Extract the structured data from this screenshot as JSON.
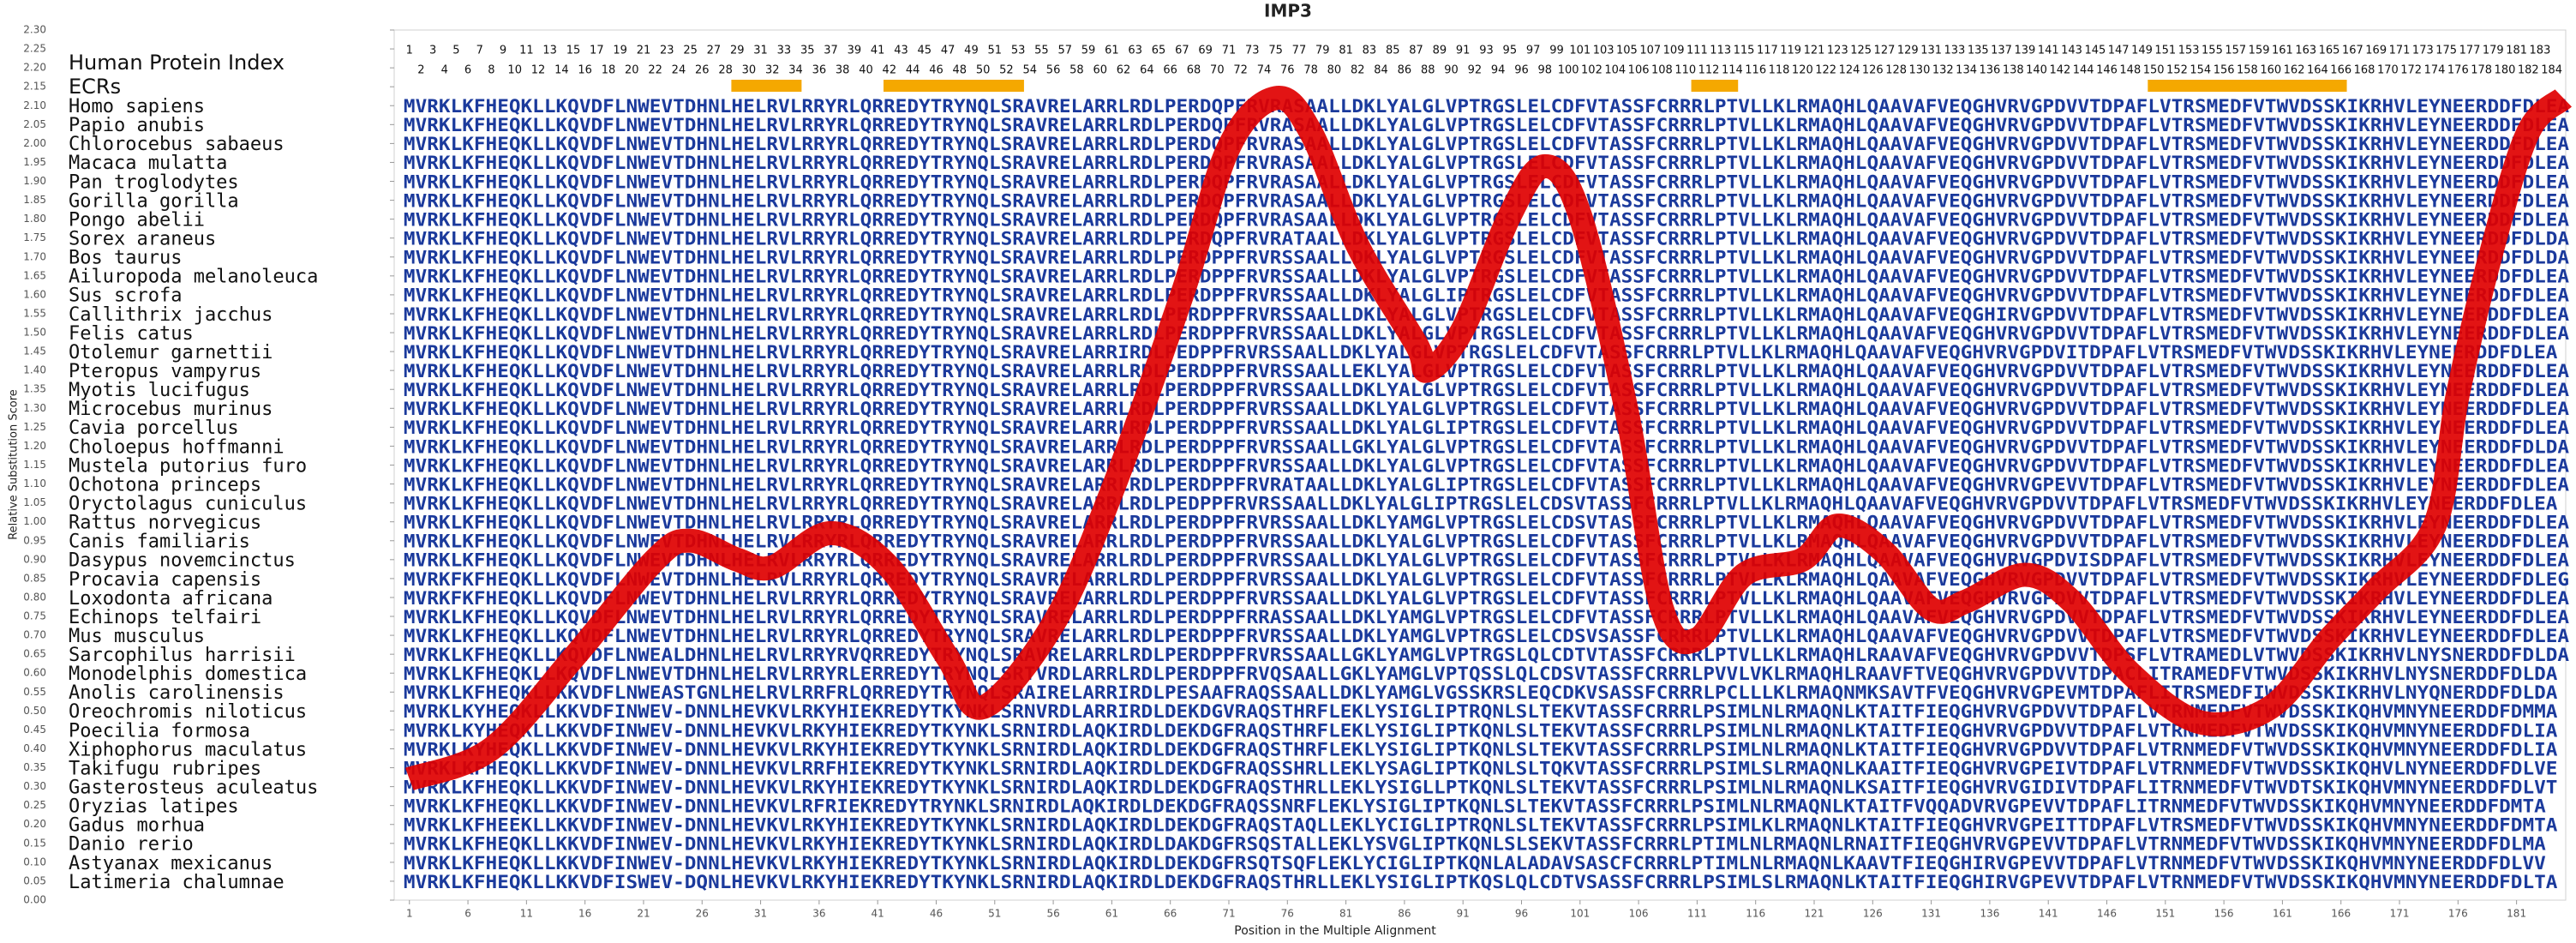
{
  "chart_data": {
    "type": "line",
    "title": "IMP3",
    "xlabel": "Position in the Multiple Alignment",
    "ylabel": "Relative Substitution Score",
    "index_label": "Human Protein Index",
    "ecr_label": "ECRs",
    "xlim": [
      -0.3,
      185.2
    ],
    "ylim": [
      0,
      2.3
    ],
    "xticks": [
      1,
      6,
      11,
      16,
      21,
      26,
      31,
      36,
      41,
      46,
      51,
      56,
      61,
      66,
      71,
      76,
      81,
      86,
      91,
      96,
      101,
      106,
      111,
      116,
      121,
      126,
      131,
      136,
      141,
      146,
      151,
      156,
      161,
      166,
      171,
      176,
      181
    ],
    "yticks": [
      {
        "value": 0,
        "label": "0.00"
      },
      0.05,
      {
        "value": 0.1,
        "label": "0.10"
      },
      0.15,
      {
        "value": 0.2,
        "label": "0.20"
      },
      0.25,
      {
        "value": 0.3,
        "label": "0.30"
      },
      0.35,
      {
        "value": 0.4,
        "label": "0.40"
      },
      0.45,
      {
        "value": 0.5,
        "label": "0.50"
      },
      0.55,
      {
        "value": 0.6,
        "label": "0.60"
      },
      0.65,
      {
        "value": 0.7,
        "label": "0.70"
      },
      0.75,
      {
        "value": 0.8,
        "label": "0.80"
      },
      0.85,
      {
        "value": 0.9,
        "label": "0.90"
      },
      0.95,
      {
        "value": 1,
        "label": "1.00"
      },
      1.05,
      {
        "value": 1.1,
        "label": "1.10"
      },
      1.15,
      {
        "value": 1.2,
        "label": "1.20"
      },
      1.25,
      {
        "value": 1.3,
        "label": "1.30"
      },
      1.35,
      {
        "value": 1.4,
        "label": "1.40"
      },
      1.45,
      {
        "value": 1.5,
        "label": "1.50"
      },
      1.55,
      {
        "value": 1.6,
        "label": "1.60"
      },
      1.65,
      {
        "value": 1.7,
        "label": "1.70"
      },
      1.75,
      {
        "value": 1.8,
        "label": "1.80"
      },
      1.85,
      {
        "value": 1.9,
        "label": "1.90"
      },
      1.95,
      {
        "value": 2,
        "label": "2.00"
      },
      2.05,
      {
        "value": 2.1,
        "label": "2.10"
      },
      2.15,
      {
        "value": 2.2,
        "label": "2.20"
      },
      2.25,
      {
        "value": 2.3,
        "label": "2.30"
      }
    ],
    "grid": false,
    "human_index": [
      1,
      2,
      3,
      4,
      5,
      6,
      7,
      8,
      9,
      10,
      11,
      12,
      13,
      14,
      15,
      16,
      17,
      18,
      19,
      20,
      21,
      22,
      23,
      24,
      25,
      26,
      27,
      28,
      29,
      30,
      31,
      32,
      33,
      34,
      35,
      36,
      37,
      38,
      39,
      40,
      41,
      42,
      43,
      44,
      45,
      46,
      47,
      48,
      49,
      50,
      51,
      52,
      53,
      54,
      55,
      56,
      57,
      58,
      59,
      60,
      61,
      62,
      63,
      64,
      65,
      66,
      67,
      68,
      69,
      70,
      71,
      72,
      73,
      74,
      75,
      76,
      77,
      78,
      79,
      80,
      81,
      82,
      83,
      84,
      85,
      86,
      87,
      88,
      89,
      90,
      91,
      92,
      93,
      94,
      95,
      96,
      97,
      98,
      99,
      100,
      101,
      102,
      103,
      104,
      105,
      106,
      107,
      108,
      109,
      110,
      111,
      112,
      113,
      114,
      115,
      116,
      117,
      118,
      119,
      120,
      121,
      122,
      123,
      124,
      125,
      126,
      127,
      128,
      129,
      130,
      131,
      132,
      133,
      134,
      135,
      136,
      137,
      138,
      139,
      140,
      141,
      142,
      143,
      144,
      145,
      146,
      147,
      148,
      149,
      150,
      151,
      152,
      153,
      154,
      155,
      156,
      157,
      158,
      159,
      160,
      161,
      162,
      163,
      164,
      165,
      166,
      167,
      168,
      169,
      170,
      171,
      172,
      173,
      174,
      175,
      176,
      177,
      178,
      179,
      180,
      181,
      182,
      183,
      184
    ],
    "ecrs": [
      [
        29,
        34
      ],
      [
        42,
        53
      ],
      [
        111,
        114
      ],
      [
        150,
        166
      ]
    ],
    "ecr_color": "#f5a800",
    "series": [
      {
        "color": "#e00000",
        "x": [
          1,
          8,
          15,
          22,
          25,
          29,
          32,
          37,
          42,
          47,
          50,
          56,
          61,
          67,
          71,
          75,
          78,
          82,
          87,
          88,
          91,
          95,
          98,
          101,
          105,
          108,
          111,
          115,
          120,
          123,
          127,
          131,
          134,
          139,
          143,
          148,
          154,
          160,
          165,
          169,
          174,
          176,
          179,
          182,
          185
        ],
        "values": [
          0.32,
          0.4,
          0.64,
          0.9,
          0.95,
          0.9,
          0.88,
          0.97,
          0.88,
          0.64,
          0.51,
          0.73,
          1.08,
          1.6,
          1.99,
          2.12,
          2.03,
          1.73,
          1.47,
          1.4,
          1.51,
          1.81,
          1.94,
          1.81,
          1.29,
          0.77,
          0.69,
          0.86,
          0.9,
          0.99,
          0.92,
          0.77,
          0.79,
          0.86,
          0.79,
          0.6,
          0.47,
          0.51,
          0.69,
          0.82,
          0.99,
          1.34,
          1.73,
          2.03,
          2.12
        ]
      }
    ],
    "alignment": [
      {
        "species": "Homo sapiens",
        "sequence": "MVRKLKFHEQKLLKQVDFLNWEVTDHNLHELRVLRRYRLQRREDYTRYNQLSRAVRELARRLRDLPERDQPFRVRASAALLDKLYALGLVPTRGSLELCDFVTASSFCRRRLPTVLLKLRMAQHLQAAVAFVEQGHVRVGPDVVTDPAFLVTRSMEDFVTWVDSSKIKRHVLEYNEERDDFDLEA"
      },
      {
        "species": "Papio anubis",
        "sequence": "MVRKLKFHEQKLLKQVDFLNWEVTDHNLHELRVLRRYRLQRREDYTRYNQLSRAVRELARRLRDLPERDQPFRVRASAALLDKLYALGLVPTRGSLELCDFVTASSFCRRRLPTVLLKLRMAQHLQAAVAFVEQGHVRVGPDVVTDPAFLVTRSMEDFVTWVDSSKIKRHVLEYNEERDDFDLEA"
      },
      {
        "species": "Chlorocebus sabaeus",
        "sequence": "MVRKLKFHEQKLLKQVDFLNWEVTDHNLHELRVLRRYRLQRREDYTRYNQLSRAVRELARRLRDLPERDQPFRVRASAALLDKLYALGLVPTRGSLELCDFVTASSFCRRRLPTVLLKLRMAQHLQAAVAFVEQGHVRVGPDVVTDPAFLVTRSMEDFVTWVDSSKIKRHVLEYNEERDDFDLEA"
      },
      {
        "species": "Macaca mulatta",
        "sequence": "MVRKLKFHEQKLLKQVDFLNWEVTDHNLHELRVLRRYRLQRREDYTRYNQLSRAVRELARRLRDLPERDQPFRVRASAALLDKLYALGLVPTRGSLELCDFVTASSFCRRRLPTVLLKLRMAQHLQAAVAFVEQGHVRVGPDVVTDPAFLVTRSMEDFVTWVDSSKIKRHVLEYNEERDDFDLEA"
      },
      {
        "species": "Pan troglodytes",
        "sequence": "MVRKLKFHEQKLLKQVDFLNWEVTDHNLHELRVLRRYRLQRREDYTRYNQLSRAVRELARRLRDLPERDQPFRVRASAALLDKLYALGLVPTRGSLELCDFVTASSFCRRRLPTVLLKLRMAQHLQAAVAFVEQGHVRVGPDVVTDPAFLVTRSMEDFVTWVDSSKIKRHVLEYNEERDDFDLEA"
      },
      {
        "species": "Gorilla gorilla",
        "sequence": "MVRKLKFHEQKLLKQVDFLNWEVTDHNLHELRVLRRYRLQRREDYTRYNQLSRAVRELARRLRDLPERDQPFRVRASAALLDKLYALGLVPTRGSLELCDFVTASSFCRRRLPTVLLKLRMAQHLQAAVAFVEQGHVRVGPDVVTDPAFLVTRSMEDFVTWVDSSKIKRHVLEYNEERDDFDLEA"
      },
      {
        "species": "Pongo abelii",
        "sequence": "MVRKLKFHEQKLLKQVDFLNWEVTDHNLHELRVLRRYRLQRREDYTRYNQLSRAVRELARRLRDLPERDQPFRVRASAALLDKLYALGLVPTRGSLELCDFVTASSFCRRRLPTVLLKLRMAQHLQAAVAFVEQGHVRVGPDVVTDPAFLVTRSMEDFVTWVDSSKIKRHVLEYNEERDDFDLEA"
      },
      {
        "species": "Sorex araneus",
        "sequence": "MVRKLKFHEQKLLKQVDFLNWEVTDHNLHELRVLRRYRLQRREDYTRYNQLSRAVRELARRLRDLPERDQPFRVRATAALLDKLYALGLVPTRGSLELCDFVTASSFCRRRLPTVLLKLRMAQHLQAAVAFVEQGHVRVGPDVVTDPAFLVTRSMEDFVTWVDSSKIKRHVLEYNEERDDFDLDA"
      },
      {
        "species": "Bos taurus",
        "sequence": "MVRKLKFHEQKLLKQVDFLNWEVTDHNLHELRVLRRYRLQRREDYTRYNQLSRAVRELARRLRDLPERDPPFRVRSSAALLDKLYALGLVPTRGSLELCDFVTASSFCRRRLPTVLLKLRMAQHLQAAVAFVEQGHVRVGPDVVTDPAFLVTRSMEDFVTWVDSSKIKRHVLEYNEERDDFDLDA"
      },
      {
        "species": "Ailuropoda melanoleuca",
        "sequence": "MVRKLKFHEQKLLKQVDFLNWEVTDHNLHELRVLRRYRLQRREDYTRYNQLSRAVRELARRLRDLPERDPPFRVRSSAALLDKLYALGLVPTRGSLELCDFVTASSFCRRRLPTVLLKLRMAQHLQAAVAFVEQGHVRVGPDVVTDPAFLVTRSMEDFVTWVDSSKIKRHVLEYNEERDDFDLEA"
      },
      {
        "species": "Sus scrofa",
        "sequence": "MVRKLKFHEQKLLKQVDFLNWEVTDHNLHELRVLRRYRLQRREDYTRYNQLSRAVRELARRLRDLPERDPPFRVRSSAALLDKLYALGLIPTRGSLELCDFVTASSFCRRRLPTVLLKLRMAQHLQAAVAFVEQGHVRVGPDVVTDPAFLVTRSMEDFVTWVDSSKIKRHVLEYNEERDDFDLEA"
      },
      {
        "species": "Callithrix jacchus",
        "sequence": "MVRKLKFHEQKLLKQVDFLNWEVTDHNLHELRVLRRYRLQRREDYTRYNQLSRAVRELARRLRDLPERDPPFRVRSSAALLDKLYALGLVPTRGSLELCDFVTASSFCRRRLPTVLLKLRMAQHLQAAVAFVEQGHIRVGPDVVTDPAFLVTRSMEDFVTWVDSSKIKRHVLEYNEERDDFDLEA"
      },
      {
        "species": "Felis catus",
        "sequence": "MVRKLKFHEQKLLKQVDFLNWEVTDHNLHELRVLRRYRLQRREDYTRYNQLSRAVRELARRLRDLPERDPPFRVRSSAALLDKLYALGLVPTRGSLELCDFVTASSFCRRRLPTVLLKLRMAQHLQAAVAFVEQGHVRVGPDVVTDPAFLVTRSMEDFVTWVDSSKIKRHVLEYNEERDDFDLEA"
      },
      {
        "species": "Otolemur garnettii",
        "sequence": "MVRKLKFHEQKLLKQVDFLNWEVTDHNLHELRVLRRYRLQRREDYTRYNQLSRAVRELARRIRDLPEDPPFRVRSSAALLDKLYALGLVPTRGSLELCDFVTASSFCRRRLPTVLLKLRMAQHLQAAVAFVEQGHVRVGPDVITDPAFLVTRSMEDFVTWVDSSKIKRHVLEYNEERDDFDLEA"
      },
      {
        "species": "Pteropus vampyrus",
        "sequence": "MVRKLKFHEQKLLKQVDFLNWEVTDHNLHELRVLRRYRLQRREDYTRYNQLSRAVRELARRLRDLPERDPPFRVRSSAALLEKLYALGLVPTRGSLELCDFVTASSFCRRRLPTVLLKLRMAQHLQAAVAFVEQGHVRVGPDVVTDPAFLVTRSMEDFVTWVDSSKIKRHVLEYNEERDDFDLEA"
      },
      {
        "species": "Myotis lucifugus",
        "sequence": "MVRKLKFHEQKLLKQVDFLNWEVTDHNLHELRVLRRYRLQRREDYTRYNQLSRAVRELARRLRDLPERDPPFRVRSSAALLDKLYALGLVPTRGSLELCDFVTASSFCRRRLPTVLLKLRMAQHLQAAVAFVEQGHVRVGPDVVTDPAFLVTRSMEDFVTWVDSSKIKRHVLEYNEERDDFDLEA"
      },
      {
        "species": "Microcebus murinus",
        "sequence": "MVRKLKFHEQKLLKQVDFLNWEVTDHNLHELRVLRRYRLQRREDYTRYNQLSRAVRELARRLRDLPERDPPFRVRSSAALLDKLYALGLVPTRGSLELCDFVTASSFCRRRLPTVLLKLRMAQHLQAAVAFVEQGHVRVGPDVVTDPAFLVTRSMEDFVTWVDSSKIKRHVLEYNEERDDFDLEA"
      },
      {
        "species": "Cavia porcellus",
        "sequence": "MVRKLKFHEQKLLKQVDFLNWEVTDHNLHELRVLRRYRLQRREDYTRYNQLSRAVRELARRLRDLPERDPPFRVRSSAALLDKLYALGLIPTRGSLELCDFVTASSFCRRRLPTVLLKLRMAQHLQAAVAFVEQGHVRVGPDVVTDPAFLVTRSMEDFVTWVDSSKIKRHVLEYNEERDDFDLEA"
      },
      {
        "species": "Choloepus hoffmanni",
        "sequence": "MVRKLKFHEQKLLKQVDFLNWEVTDHNLHELRVLRRYRLQRREDYTRYNQLSRAVRELARRLRDLPERDPPFRVRSSAALLGKLYALGLVPTRGSLELCDFVTASSFCRRRLPTVLLKLRMAQHLQAAVAFVEQGHVRVGPDVVTDPAFLVTRSMEDFVTWVDSSKIKRHVLEYNEERDDFDLDA"
      },
      {
        "species": "Mustela putorius furo",
        "sequence": "MVRKLKFHEQKLLKQVDFLNWEVTDHNLHELRVLRRYRLQRREDYTRYNQLSRAVRELARRLRDLPERDPPFRVRSSAALLDKLYALGLVPTRGSLELCDFVTASSFCRRRLPTVLLKLRMAQHLQAAVAFVEQGHVRVGPDVVTDPAFLVTRSMEDFVTWVDSSKIKRHVLEYNEERDDFDLEA"
      },
      {
        "species": "Ochotona princeps",
        "sequence": "MVRKLKFHEQKLLKQVDFLNWEVTDHNLHELRVLRRYRLQRREDYTRYNQLSRAVRELARRLRDLPERDPPFRVRATAALLDKLYALGLIPTRGSLELCDFVTASSFCRRRLPTVLLKLRMAQHLQAAVAFVEQGHVRVGPEVVTDPAFLVTRSMEDFVTWVDSSKIKRHVLEYNEERDDFDLEA"
      },
      {
        "species": "Oryctolagus cuniculus",
        "sequence": "MVRKLKFHEQKLLKQVDFLNWEVTDHNLHELRVLRRYRLQRREDYTRYNQLSRAVRELARRLRDLPEDPPFRVRSSAALLDKLYALGLIPTRGSLELCDSVTASSFCRRRLPTVLLKLRMAQHLQAAVAFVEQGHVRVGPDVVTDPAFLVTRSMEDFVTWVDSSKIKRHVLEYNEERDDFDLEA"
      },
      {
        "species": "Rattus norvegicus",
        "sequence": "MVRKLKFHEQKLLKQVDFLNWEVTDHNLHELRVLRRYRLQRREDYTRYNQLSRAVRELARRLRDLPERDPPFRVRSSAALLDKLYAMGLVPTRGSLELCDSVTASSFCRRRLPTVLLKLRMAQHLQAAVAFVEQGHVRVGPDVVTDPAFLVTRSMEDFVTWVDSSKIKRHVLEYNEERDDFDLEA"
      },
      {
        "species": "Canis familiaris",
        "sequence": "MVRKLKFHEQKLLKQVDFLNWEVTDHNLHELRVLRRYRLQRREDYTRYNQLSRAVRELARRLRDLPERDPPFRVRSSAALLDKLYALGLVPTRGSLELCDFVTASSFCRRRLPTVLLKLRMAQHLQAAVAFVEQGHVRVGPDVVTDPAFLVTRSMEDFVTWVDSSKIKRHVLEYNEERDDFDLEA"
      },
      {
        "species": "Dasypus novemcinctus",
        "sequence": "MVRKLKFHEQKLLKQVDFLNWEVTDHNLHELRVLRRYRLQRREDYTRYNQLSRAVRELARRLRDLPERDPPFRVRSSAALLDKLYALGLVPTRGSLELCDFVTASSFCRRRLPTVLLKLRMAQHLQAAVAFVEQGHVRVGPDVISDPAFLVTRSMEDFVTWVDSSKIKRHVLEYNEERDDFDLEA"
      },
      {
        "species": "Procavia capensis",
        "sequence": "MVRKFKFHEQKLLKQVDFLNWEVTDHNLHELRVLRRYRLQRREDYTRYNQLSRAVRELARRLRDLPERDPPFRVRSSAALLDKLYALGLVPTRGSLELCDFVTASSFCRRRLPTVLLKLRMAQHLQAAVAFVEQGHVRVGPDVVTDPAFLVTRSMEDFVTWVDSSKIKRHVLEYNEERDDFDLEG"
      },
      {
        "species": "Loxodonta africana",
        "sequence": "MVRKFKFHEQKLLKQVDFLNWEVTDHNLHELRVLRRYRLQRREDYTRYNQLSRAVRELARRLRDLPERDPPFRVRSSAALLDKLYALGLVPTRGSLELCDFVTASSFCRRRLPTVLLKLRMAQHLQAAVAFVEQGHVRVGPDVVTDPAFLVTRSMEDFVTWVDSSKIKRHVLEYNEERDDFDLEA"
      },
      {
        "species": "Echinops telfairi",
        "sequence": "MVRKLKFHEQKLLKQVDFLNWEVTDHNLHELRVLRRYRLQRREDYTRYNQLSRAVRELARRLRDLPERDPPFRRASSAALLDKLYAMGLVPTRGSLELCDFVTASSFCRRRLPTVLLKLRMAQHLQAAVAFVEQGHVRVGPDVVTDPAFLVTRSMEDFVTWVDSSKIKRHVLEYNEERDDFDLEA"
      },
      {
        "species": "Mus musculus",
        "sequence": "MVRKLKFHEQKLLKQVDFLNWEVTDHNLHELRVLRRYRLQRREDYTRYNQLSRAVRELARRLRDLPERDPPFRVRSSAALLDKLYAMGLVPTRGSLELCDSVSASSFCRRRLPTVLLKLRMAQHLQAAVAFVEQGHVRVGPDVVTDPAFLVTRSMEDFVTWVDSSKIKRHVLEYNEERDDFDLEA"
      },
      {
        "species": "Sarcophilus harrisii",
        "sequence": "MVRKLKFHEQKLLKQVDFLNWEALDHNLHELRVLRRYRVQRREDYTRYNQLSRAVRELARRLRDLPERDPPFRVRSSAALLGKLYAMGLVPTRGSLQLCDTVTASSFCRRRLPTVLLKLRMAQHLRAAVAFVEQGHVRVGPDVVTDPSFLVTRAMEDLVTWVDSSKIKRHVLNYSNERDDFDLDA"
      },
      {
        "species": "Monodelphis domestica",
        "sequence": "MVRKLKFHEQKLLKQVDFLNWEVTDHNLHELRVLRRYRLERREDYTRYNQLSRTVRDLARRLRDLPERDPPFRVQSAALLGKLYAMGLVPTQSSLQLCDSVTASSFCRRRLPVVLVKLRMAQHLRAAVFTVEQGHVRVGPDVVTDPACLITRAMEDFVTWVDSSKIKRHVLNYSNERDDFDLDA"
      },
      {
        "species": "Anolis carolinensis",
        "sequence": "MVRKLKFHEQKLLKKVDFLNWEASTGNLHELRVLRRFRLQRREDYTRYNQLSRAIRELARRIRDLPESAAFRAQSSAALLDKLYAMGLVGSSKRSLEQCDKVSASSFCRRRLPCLLLKLRMAQNMKSAVTFVEQGHVRVGPEVMTDPAFLITRSMEDFIWVDSSKIKRHVLNYQNERDDFDLDA"
      },
      {
        "species": "Oreochromis niloticus",
        "sequence": "MVRKLKYHEQKLLKKVDFINWEV-DNNLHEVKVLRKYHIEKREDYTKYNKLSRNVRDLARRIRDLDEKDGVRAQSTHRFLEKLYSIGLIPTRQNLSLTEKVTASSFCRRRLPSIMLNLRMAQNLKTAITFIEQGHVRVGPDVVTDPAFLVTRNMEDFVTWVDSSKIKQHVMNYNEERDDFDMMA"
      },
      {
        "species": "Poecilia formosa",
        "sequence": "MVRKLKYHEQKLLKKVDFINWEV-DNNLHEVKVLRKYHIEKREDYTKYNKLSRNIRDLAQKIRDLDEKDGFRAQSTHRFLEKLYSIGLIPTKQNLSLTEKVTASSFCRRRLPSIMLNLRMAQNLKTAITFIEQGHVRVGPDVVTDPAFLVTRNMEDFVTWVDSSKIKQHVMNYNEERDDFDLIA"
      },
      {
        "species": "Xiphophorus maculatus",
        "sequence": "MVRKLKYHEQKLLKKVDFINWEV-DNNLHEVKVLRKYHIEKREDYTKYNKLSRNIRDLAQKIRDLDEKDGFRAQSTHRFLEKLYSIGLIPTKQNLSLTEKVTASSFCRRRLPSIMLNLRMAQNLKTAITFIEQGHVRVGPDVVTDPAFLVTRNMEDFVTWVDSSKIKQHVMNYNEERDDFDLIA"
      },
      {
        "species": "Takifugu rubripes",
        "sequence": "MVRKLKFHEQKLLKKVDFINWEV-DNNLHEVKVLRRFHIEKREDYTKYNKLSRNIRDLAQKIRDLDEKDGFRAQSSHRLLEKLYSAGLIPTKQNLSLTQKVTASSFCRRRLPSIMLSLRMAQNLKAAITFIEQGHVRVGPEIVTDPAFLVTRNMEDFVTWVDSSKIKQHVLNYNEERDDFDLVE"
      },
      {
        "species": "Gasterosteus aculeatus",
        "sequence": "MVRKLKFHEQKLLKKVDFINWEV-DNNLHEVKVLRKYHIEKREDYTKYNKLSRNIRDLAQKIRDLDEKDGFRAQSTHRLLEKLYSIGLLPTKQNLSLTEKVTASSFCRRRLPSIMLNLRMAQNLKSAITFIEQGHVRVGIDIVTDPAFLITRNMEDFVTWVDTSKIKQHVMNYNEERDDFDLVT"
      },
      {
        "species": "Oryzias latipes",
        "sequence": "MVRKLKFHEQKLLKKVDFINWEV-DNNLHEVKVLRFRIEKREDYTRYNKLSRNIRDLAQKIRDLDEKDGFRAQSSNRFLEKLYSIGLIPTKQNLSLTEKVTASSFCRRRLPSIMLNLRMAQNLKTAITFVQQADVRVGPEVVTDPAFLITRNMEDFVTWVDSSKIKQHVMNYNEERDDFDMTA"
      },
      {
        "species": "Gadus morhua",
        "sequence": "MVRKLKFHEEKLLKKVDFINWEV-DNNLHEVKVLRKYHIEKREDYTKYNKLSRNIRDLAQKIRDLDEKDGFRAQSTAQLLEKLYCIGLIPTRQNLSLTEKVTASSFCRRRLPSIMLKLRMAQNLKTAITFIEQGHVRVGPEITTDPAFLVTRSMEDFVTWVDSSKIKQHVMNYNEERDDFDMTA"
      },
      {
        "species": "Danio rerio",
        "sequence": "MVRKLKFHEQKLLKKVDFINWEV-DNNLHEVKVLRKYHIEKREDYTKYNKLSRNIRDLAQKIRDLDAKDGFRSQSTALLEKLYSVGLIPTKQNLSLSEKVTASSFCRRRLPTIMLNLRMAQNLRNAITFIEQGHVRVGPEVVTDPAFLVTRNMEDFVTWVDSSKIKQHVMNYNEERDDFDLMA"
      },
      {
        "species": "Astyanax mexicanus",
        "sequence": "MVRKLKFHEQKLLKKVDFINWEV-DNNLHEVKVLRKYHIEKREDYTKYNKLSRNIRDLAQKIRDLDEKDGFRSQTSQFLEKLYCIGLIPTKQNLALADAVSASCFCRRRLPTIMLNLRMAQNLKAAVTFIEQGHIRVGPEVVTDPAFLVTRNMEDFVTWVDSSKIKQHVMNYNEERDDFDLVV"
      },
      {
        "species": "Latimeria chalumnae",
        "sequence": "MVRKLKFHEQKLLKKVDFISWEV-DQNLHEVKVLRKYHIEKREDYTKYNKLSRNIRDLAQKIRDLDEKDGFRAQSTHRLLEKLYSIGLIPTKQSLQLCDTVSASSFCRRRLPSIMLSLRMAQNLKTAITFIEQGHIRVGPEVVTDPAFLVTRNMEDFVTWVDSSKIKQHVMNYNEERDDFDLTA"
      }
    ]
  }
}
